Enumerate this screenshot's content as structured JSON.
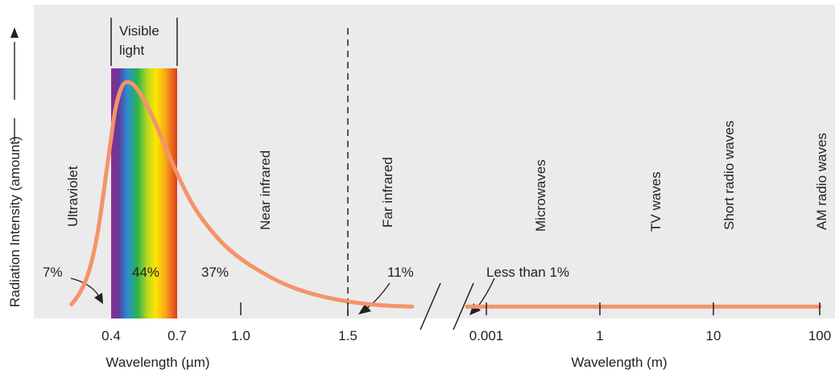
{
  "chart_data": {
    "type": "line",
    "title": "",
    "ylabel": "Radiation Intensity (amount)",
    "xlabel_left": "Wavelength (µm)",
    "xlabel_right": "Wavelength (m)",
    "left_ticks": [
      "0.4",
      "0.7",
      "1.0",
      "1.5"
    ],
    "right_ticks": [
      "0.001",
      "1",
      "10",
      "100"
    ],
    "visible_band": {
      "label_line1": "Visible",
      "label_line2": "light",
      "range_um": [
        0.4,
        0.7
      ]
    },
    "regions": [
      "Ultraviolet",
      "Near infrared",
      "Far infrared",
      "Microwaves",
      "TV waves",
      "Short radio waves",
      "AM radio waves"
    ],
    "percentages": [
      "7%",
      "44%",
      "37%",
      "11%",
      "Less than 1%"
    ],
    "series": [
      {
        "x_um": [
          0.22,
          0.26,
          0.3,
          0.34,
          0.38,
          0.4,
          0.42,
          0.45,
          0.48,
          0.51,
          0.55,
          0.6,
          0.65,
          0.7,
          0.75,
          0.8,
          0.9,
          1.0,
          1.1,
          1.2,
          1.3,
          1.4,
          1.5,
          1.6,
          1.7,
          1.8
        ],
        "y": [
          0.02,
          0.07,
          0.16,
          0.33,
          0.62,
          0.76,
          0.9,
          1.0,
          1.01,
          0.99,
          0.93,
          0.83,
          0.71,
          0.6,
          0.5,
          0.42,
          0.3,
          0.22,
          0.16,
          0.11,
          0.075,
          0.05,
          0.032,
          0.02,
          0.013,
          0.01
        ]
      }
    ],
    "colors": {
      "curve": "#f4936a",
      "background": "#ebebeb",
      "axis": "#222222"
    }
  }
}
